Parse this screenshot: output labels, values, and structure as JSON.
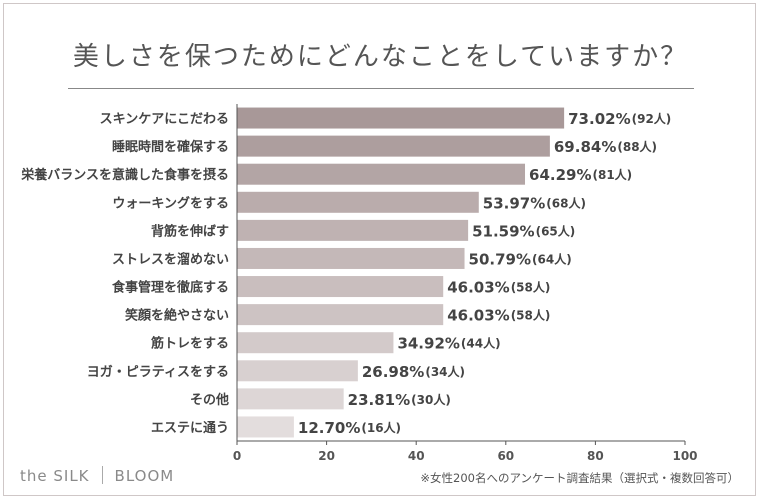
{
  "title": "美しさを保つためにどんなことをしていますか？",
  "footer": {
    "logo_left": "the SILK",
    "logo_right": "BLOOM",
    "note": "※女性200名へのアンケート調査結果（選択式・複数回答可）"
  },
  "chart_data": {
    "type": "bar",
    "orientation": "horizontal",
    "categories": [
      "スキンケアにこだわる",
      "睡眠時間を確保する",
      "栄養バランスを意識した食事を摂る",
      "ウォーキングをする",
      "背筋を伸ばす",
      "ストレスを溜めない",
      "食事管理を徹底する",
      "笑顔を絶やさない",
      "筋トレをする",
      "ヨガ・ピラティスをする",
      "その他",
      "エステに通う"
    ],
    "values": [
      73.02,
      69.84,
      64.29,
      53.97,
      51.59,
      50.79,
      46.03,
      46.03,
      34.92,
      26.98,
      23.81,
      12.7
    ],
    "value_labels": [
      "73.02%",
      "69.84%",
      "64.29%",
      "53.97%",
      "51.59%",
      "50.79%",
      "46.03%",
      "46.03%",
      "34.92%",
      "26.98%",
      "23.81%",
      "12.70%"
    ],
    "counts": [
      "(92人)",
      "(88人)",
      "(81人)",
      "(68人)",
      "(65人)",
      "(64人)",
      "(58人)",
      "(58人)",
      "(44人)",
      "(34人)",
      "(30人)",
      "(16人)"
    ],
    "colors": [
      "#a89898",
      "#ad9e9e",
      "#b3a5a5",
      "#baacac",
      "#bfb2b2",
      "#c4b8b8",
      "#c9bebe",
      "#cdc3c3",
      "#d3caca",
      "#d8d0d0",
      "#ddd6d6",
      "#e3dddd"
    ],
    "xlim": [
      0,
      100
    ],
    "xticks": [
      0,
      20,
      40,
      60,
      80,
      100
    ],
    "grid": false,
    "xlabel": "",
    "ylabel": ""
  }
}
